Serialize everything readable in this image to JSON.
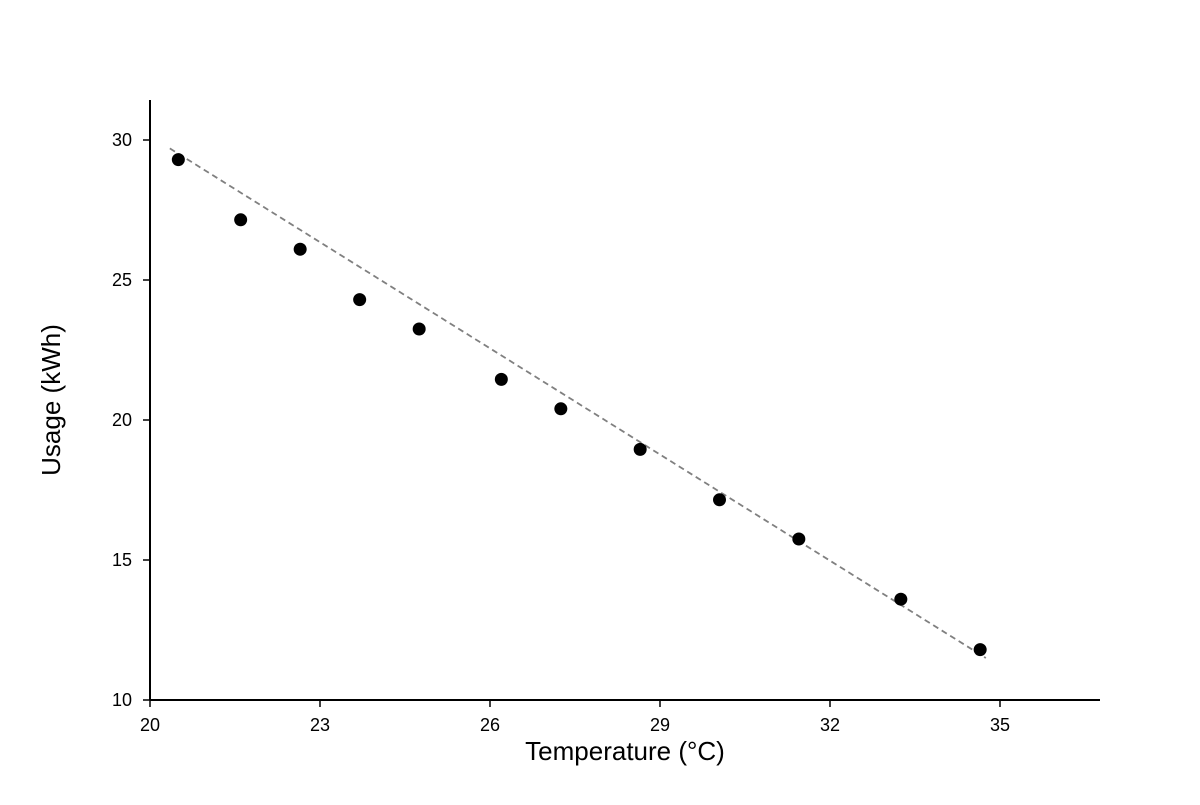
{
  "chart_data": {
    "type": "scatter",
    "title": "",
    "xlabel": "Temperature (°C)",
    "ylabel": "Usage (kWh)",
    "xlim": [
      20,
      36.75
    ],
    "ylim": [
      10,
      31.4
    ],
    "x_ticks": [
      "20",
      "23",
      "26",
      "29",
      "32",
      "35"
    ],
    "y_ticks": [
      "10",
      "15",
      "20",
      "25",
      "30"
    ],
    "grid": false,
    "legend": "none",
    "series": [
      {
        "points": [
          {
            "x": 20.5,
            "y": 29.3
          },
          {
            "x": 21.6,
            "y": 27.15
          },
          {
            "x": 22.65,
            "y": 26.1
          },
          {
            "x": 23.7,
            "y": 24.3
          },
          {
            "x": 24.75,
            "y": 23.25
          },
          {
            "x": 26.2,
            "y": 21.45
          },
          {
            "x": 27.25,
            "y": 20.4
          },
          {
            "x": 28.65,
            "y": 18.95
          },
          {
            "x": 30.05,
            "y": 17.15
          },
          {
            "x": 31.45,
            "y": 15.75
          },
          {
            "x": 33.25,
            "y": 13.6
          },
          {
            "x": 34.65,
            "y": 11.8
          }
        ],
        "marker_color": "#000000"
      }
    ],
    "trendline": {
      "style": "dashed",
      "color": "#808080",
      "start": {
        "x": 20.35,
        "y": 29.7
      },
      "end": {
        "x": 34.75,
        "y": 11.5
      }
    }
  }
}
